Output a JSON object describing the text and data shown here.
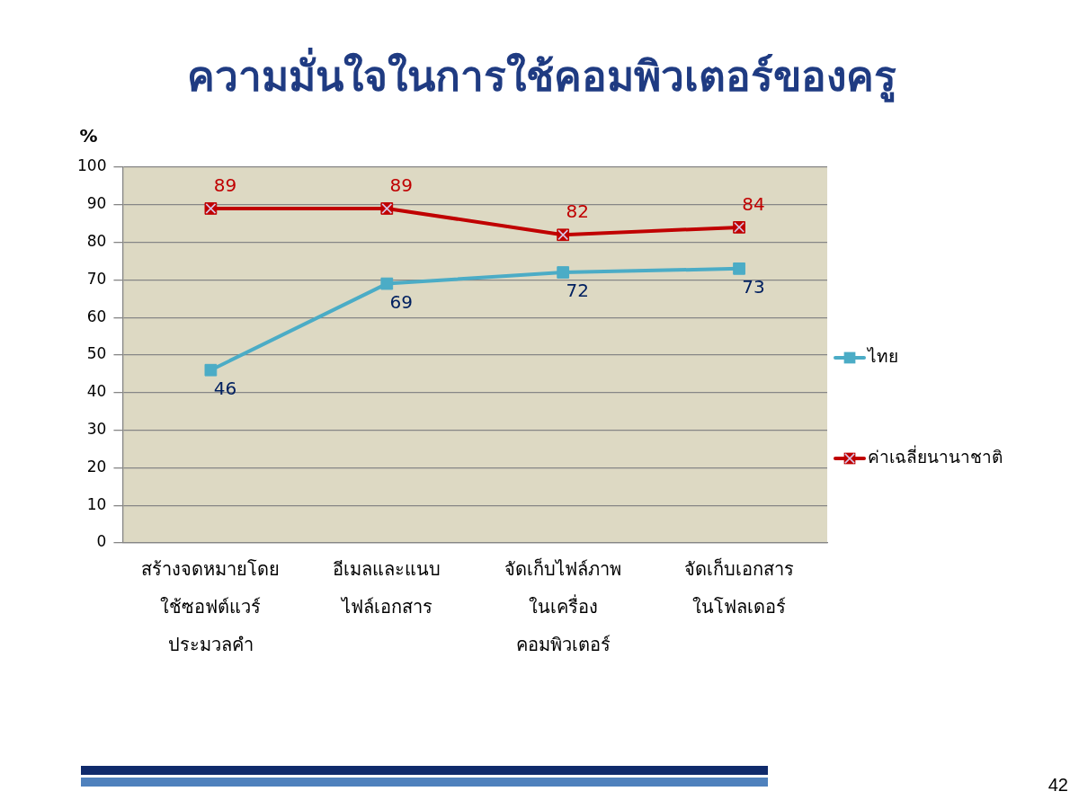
{
  "chart_data": {
    "type": "line",
    "title": "ความมั่นใจในการใช้คอมพิวเตอร์ของครู",
    "ylabel": "%",
    "categories": [
      "สร้างจดหมายโดย\nใช้ซอฟต์แวร์\nประมวลคำ",
      "อีเมลและแนบ\nไฟล์เอกสาร",
      "จัดเก็บไฟล์ภาพ\nในเครื่อง\nคอมพิวเตอร์",
      "จัดเก็บเอกสาร\nในโฟลเดอร์"
    ],
    "series": [
      {
        "name": "ไทย",
        "color": "#4bacc6",
        "values": [
          46,
          69,
          72,
          73
        ],
        "marker": "square"
      },
      {
        "name": "ค่าเฉลี่ยนานาชาติ",
        "color": "#c00000",
        "values": [
          89,
          89,
          82,
          84
        ],
        "marker": "square"
      }
    ],
    "ylim": [
      0,
      100
    ],
    "yticks": [
      0,
      10,
      20,
      30,
      40,
      50,
      60,
      70,
      80,
      90,
      100
    ],
    "grid": "y",
    "legend": "right",
    "data_labels": true,
    "annotations": [
      "42"
    ]
  }
}
